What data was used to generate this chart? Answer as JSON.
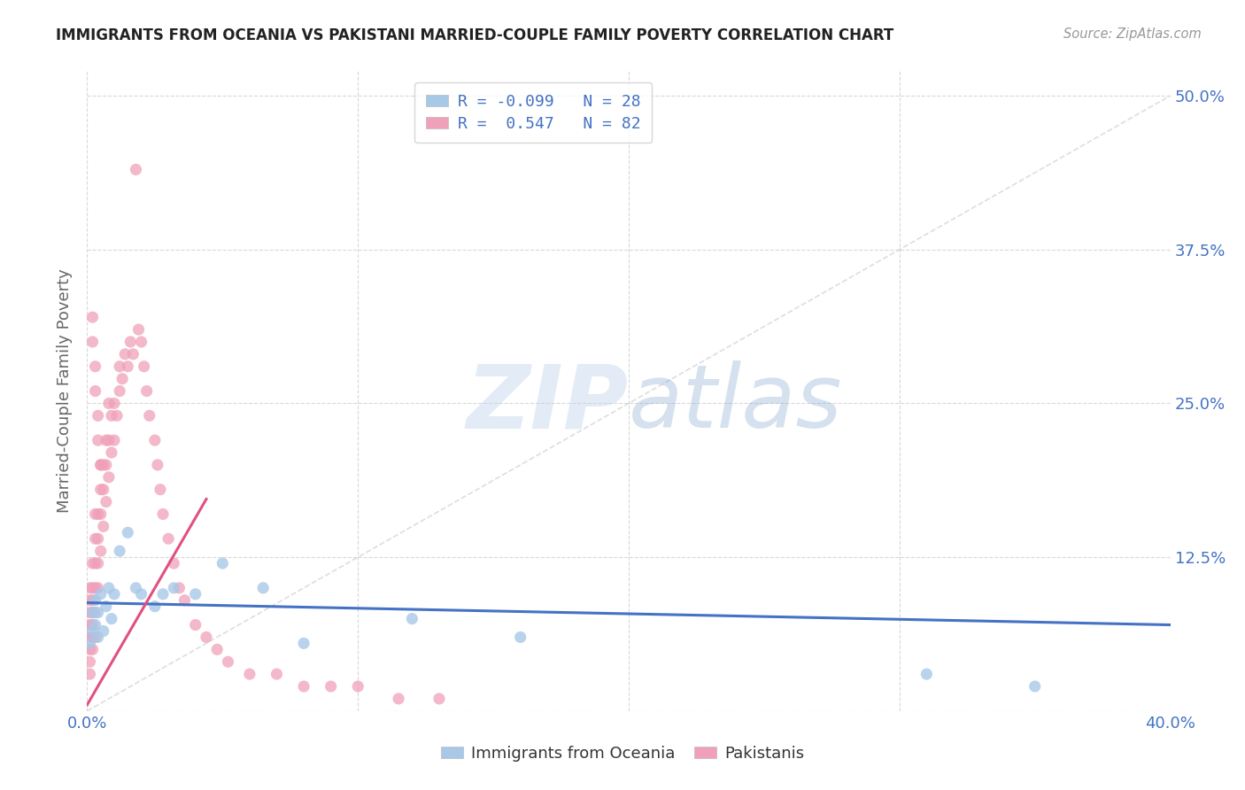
{
  "title": "IMMIGRANTS FROM OCEANIA VS PAKISTANI MARRIED-COUPLE FAMILY POVERTY CORRELATION CHART",
  "source": "Source: ZipAtlas.com",
  "ylabel": "Married-Couple Family Poverty",
  "xlim": [
    0.0,
    0.4
  ],
  "ylim": [
    0.0,
    0.52
  ],
  "xticks": [
    0.0,
    0.1,
    0.2,
    0.3,
    0.4
  ],
  "yticks": [
    0.0,
    0.125,
    0.25,
    0.375,
    0.5
  ],
  "color_blue": "#a8c8e8",
  "color_pink": "#f0a0b8",
  "line_blue": "#4472c4",
  "line_pink": "#e05080",
  "color_text_blue": "#4472c4",
  "diagonal_color": "#d0d0d0",
  "background": "#ffffff",
  "grid_color": "#d8d8d8",
  "legend_r1": "R = -0.099",
  "legend_n1": "N = 28",
  "legend_r2": "R =  0.547",
  "legend_n2": "N = 82",
  "oceania_x": [
    0.001,
    0.002,
    0.002,
    0.003,
    0.003,
    0.004,
    0.004,
    0.005,
    0.006,
    0.007,
    0.008,
    0.009,
    0.01,
    0.012,
    0.015,
    0.018,
    0.02,
    0.025,
    0.028,
    0.032,
    0.04,
    0.05,
    0.065,
    0.08,
    0.12,
    0.16,
    0.31,
    0.35
  ],
  "oceania_y": [
    0.055,
    0.065,
    0.08,
    0.07,
    0.09,
    0.08,
    0.06,
    0.095,
    0.065,
    0.085,
    0.1,
    0.075,
    0.095,
    0.13,
    0.145,
    0.1,
    0.095,
    0.085,
    0.095,
    0.1,
    0.095,
    0.12,
    0.1,
    0.055,
    0.075,
    0.06,
    0.03,
    0.02
  ],
  "pakistani_x": [
    0.001,
    0.001,
    0.001,
    0.001,
    0.001,
    0.001,
    0.001,
    0.001,
    0.002,
    0.002,
    0.002,
    0.002,
    0.002,
    0.002,
    0.002,
    0.003,
    0.003,
    0.003,
    0.003,
    0.003,
    0.003,
    0.004,
    0.004,
    0.004,
    0.004,
    0.005,
    0.005,
    0.005,
    0.005,
    0.006,
    0.006,
    0.006,
    0.007,
    0.007,
    0.007,
    0.008,
    0.008,
    0.008,
    0.009,
    0.009,
    0.01,
    0.01,
    0.011,
    0.012,
    0.012,
    0.013,
    0.014,
    0.015,
    0.016,
    0.017,
    0.018,
    0.019,
    0.02,
    0.021,
    0.022,
    0.023,
    0.025,
    0.026,
    0.027,
    0.028,
    0.03,
    0.032,
    0.034,
    0.036,
    0.04,
    0.044,
    0.048,
    0.052,
    0.06,
    0.07,
    0.08,
    0.09,
    0.1,
    0.115,
    0.13,
    0.002,
    0.002,
    0.003,
    0.003,
    0.004,
    0.004,
    0.005
  ],
  "pakistani_y": [
    0.03,
    0.04,
    0.05,
    0.06,
    0.07,
    0.08,
    0.09,
    0.1,
    0.05,
    0.06,
    0.07,
    0.08,
    0.09,
    0.1,
    0.12,
    0.06,
    0.08,
    0.1,
    0.12,
    0.14,
    0.16,
    0.1,
    0.12,
    0.14,
    0.16,
    0.13,
    0.16,
    0.18,
    0.2,
    0.15,
    0.18,
    0.2,
    0.17,
    0.2,
    0.22,
    0.19,
    0.22,
    0.25,
    0.21,
    0.24,
    0.22,
    0.25,
    0.24,
    0.26,
    0.28,
    0.27,
    0.29,
    0.28,
    0.3,
    0.29,
    0.44,
    0.31,
    0.3,
    0.28,
    0.26,
    0.24,
    0.22,
    0.2,
    0.18,
    0.16,
    0.14,
    0.12,
    0.1,
    0.09,
    0.07,
    0.06,
    0.05,
    0.04,
    0.03,
    0.03,
    0.02,
    0.02,
    0.02,
    0.01,
    0.01,
    0.32,
    0.3,
    0.28,
    0.26,
    0.24,
    0.22,
    0.2
  ]
}
